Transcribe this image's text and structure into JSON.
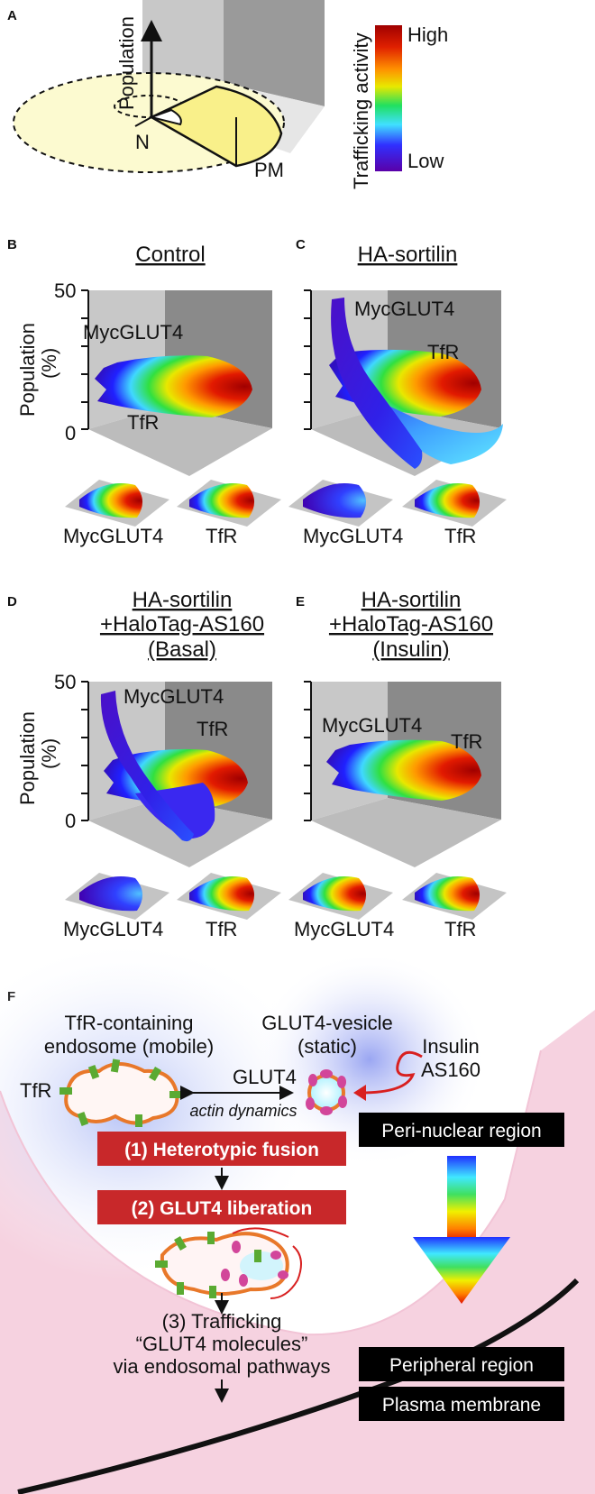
{
  "panelA": {
    "letter": "A",
    "axis_label": "Population",
    "center_label": "N",
    "edge_label": "PM",
    "colorbar": {
      "title": "Trafficking activity",
      "high": "High",
      "low": "Low"
    }
  },
  "panelB": {
    "letter": "B",
    "title": "Control",
    "ylabel_1": "Population",
    "ylabel_2": "(%)",
    "ytick_top": "50",
    "ytick_bottom": "0",
    "label_a": "MycGLUT4",
    "label_b": "TfR",
    "sub_left": "MycGLUT4",
    "sub_right": "TfR"
  },
  "panelC": {
    "letter": "C",
    "title": "HA-sortilin",
    "label_a": "MycGLUT4",
    "label_b": "TfR",
    "sub_left": "MycGLUT4",
    "sub_right": "TfR"
  },
  "panelD": {
    "letter": "D",
    "title_1": "HA-sortilin",
    "title_2": "+HaloTag-AS160",
    "title_3": "(Basal)",
    "ylabel_1": "Population",
    "ylabel_2": "(%)",
    "ytick_top": "50",
    "ytick_bottom": "0",
    "label_a": "MycGLUT4",
    "label_b": "TfR",
    "sub_left": "MycGLUT4",
    "sub_right": "TfR"
  },
  "panelE": {
    "letter": "E",
    "title_1": "HA-sortilin",
    "title_2": "+HaloTag-AS160",
    "title_3": "(Insulin)",
    "label_a": "MycGLUT4",
    "label_b": "TfR",
    "sub_left": "MycGLUT4",
    "sub_right": "TfR"
  },
  "panelF": {
    "letter": "F",
    "tfr_endosome_1": "TfR-containing",
    "tfr_endosome_2": "endosome (mobile)",
    "glut4_vesicle_1": "GLUT4-vesicle",
    "glut4_vesicle_2": "(static)",
    "insulin": "Insulin",
    "as160": "AS160",
    "tfr": "TfR",
    "glut4": "GLUT4",
    "actin": "actin dynamics",
    "step1": "(1) Heterotypic fusion",
    "step2": "(2) GLUT4 liberation",
    "step3_1": "(3) Trafficking",
    "step3_2": "“GLUT4 molecules”",
    "step3_3": "via endosomal pathways",
    "perinuclear": "Peri-nuclear region",
    "peripheral": "Peripheral region",
    "plasma_membrane": "Plasma membrane"
  },
  "colors": {
    "box_red": "#c8282a",
    "tfr_green": "#5aaa32",
    "glut4_magenta": "#d2469a",
    "membrane_orange": "#e8782a",
    "pink_region": "#f6d2e0",
    "blue_glow": "#b0bcf4"
  }
}
